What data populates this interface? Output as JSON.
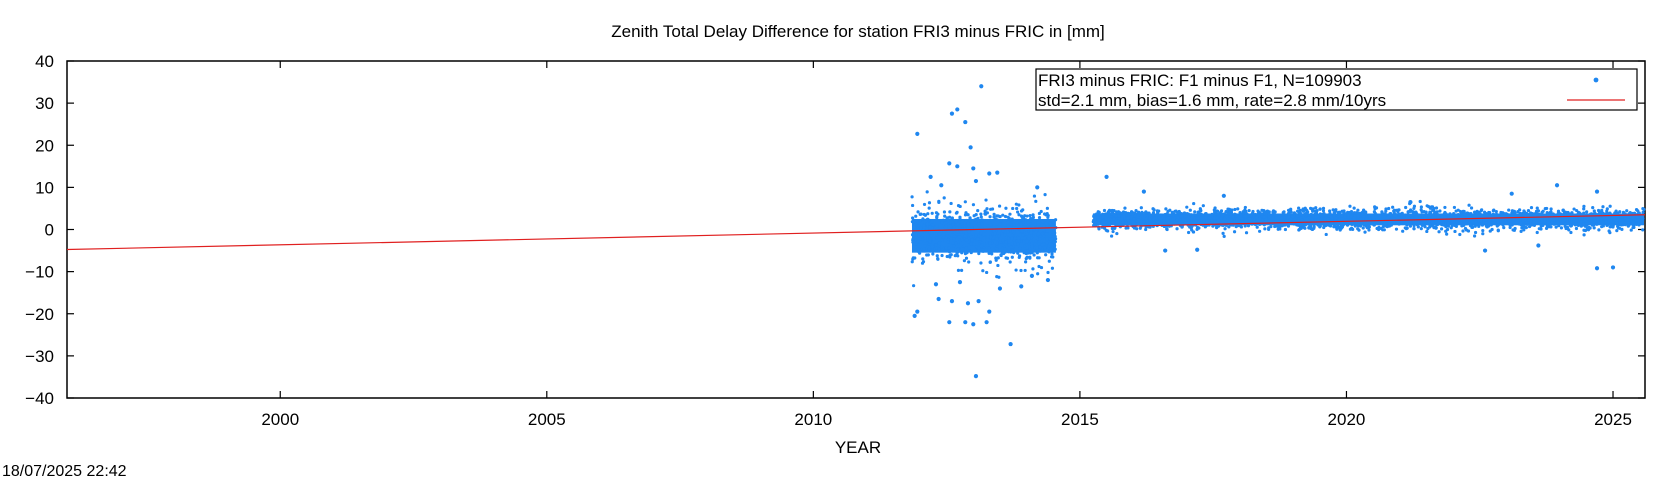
{
  "chart_data": {
    "type": "scatter",
    "title": "Zenith Total Delay Difference for station FRI3 minus FRIC in [mm]",
    "xlabel": "YEAR",
    "ylabel": "",
    "xlim": [
      1996.0,
      2025.6
    ],
    "ylim": [
      -40,
      40
    ],
    "grid": false,
    "legend_position": "top-right",
    "x_ticks": [
      2000,
      2005,
      2010,
      2015,
      2020,
      2025
    ],
    "y_ticks": [
      -40,
      -30,
      -20,
      -10,
      0,
      10,
      20,
      30,
      40
    ],
    "x_tick_labels": [
      "2000",
      "2005",
      "2010",
      "2015",
      "2020",
      "2025"
    ],
    "y_tick_labels": [
      "−40",
      "−30",
      "−20",
      "−10",
      "0",
      "10",
      "20",
      "30",
      "40"
    ],
    "series": [
      {
        "name": "FRI3 minus FRIC: F1 minus F1, N=109903",
        "kind": "scatter",
        "color": "#1f87f0",
        "segments": [
          {
            "x_start": 2011.85,
            "x_end": 2014.55,
            "y_center": -1.5,
            "y_spread": 4.0
          },
          {
            "x_start": 2015.25,
            "x_end": 2025.6,
            "y_center": 2.4,
            "y_spread": 1.4
          }
        ],
        "outliers": [
          [
            2011.95,
            22.7
          ],
          [
            2012.7,
            28.5
          ],
          [
            2012.6,
            27.5
          ],
          [
            2012.85,
            25.5
          ],
          [
            2013.15,
            34.0
          ],
          [
            2012.95,
            19.5
          ],
          [
            2012.55,
            15.7
          ],
          [
            2012.7,
            15.0
          ],
          [
            2013.0,
            14.5
          ],
          [
            2013.3,
            13.3
          ],
          [
            2013.45,
            13.5
          ],
          [
            2012.2,
            12.5
          ],
          [
            2013.05,
            11.5
          ],
          [
            2012.4,
            10.5
          ],
          [
            2014.2,
            10.0
          ],
          [
            2015.5,
            12.5
          ],
          [
            2016.2,
            9.0
          ],
          [
            2023.95,
            10.5
          ],
          [
            2024.7,
            9.0
          ],
          [
            2023.1,
            8.5
          ],
          [
            2017.7,
            8.0
          ],
          [
            2021.2,
            6.5
          ],
          [
            2011.95,
            -19.5
          ],
          [
            2011.9,
            -20.5
          ],
          [
            2012.35,
            -16.5
          ],
          [
            2012.6,
            -17.0
          ],
          [
            2012.9,
            -17.5
          ],
          [
            2013.1,
            -17.0
          ],
          [
            2012.55,
            -22.0
          ],
          [
            2012.85,
            -22.0
          ],
          [
            2013.0,
            -22.5
          ],
          [
            2013.25,
            -22.0
          ],
          [
            2013.3,
            -19.5
          ],
          [
            2013.7,
            -27.2
          ],
          [
            2013.05,
            -34.8
          ],
          [
            2012.3,
            -13.0
          ],
          [
            2012.75,
            -12.5
          ],
          [
            2013.5,
            -14.0
          ],
          [
            2013.9,
            -13.5
          ],
          [
            2014.1,
            -11.0
          ],
          [
            2014.4,
            -12.0
          ],
          [
            2016.6,
            -5.0
          ],
          [
            2017.2,
            -4.8
          ],
          [
            2022.6,
            -5.0
          ],
          [
            2024.7,
            -9.2
          ],
          [
            2025.0,
            -9.0
          ],
          [
            2023.6,
            -3.8
          ]
        ]
      },
      {
        "name": "std=2.1 mm, bias=1.6 mm, rate=2.8 mm/10yrs",
        "kind": "line",
        "color": "#e02020",
        "x": [
          1996.0,
          2025.6
        ],
        "y": [
          -4.75,
          3.5
        ]
      }
    ]
  },
  "footer": {
    "timestamp": "18/07/2025 22:42"
  }
}
